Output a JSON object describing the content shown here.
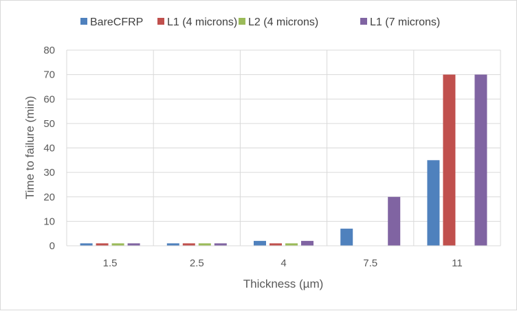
{
  "chart_data": {
    "type": "bar",
    "title": "",
    "xlabel": "Thickness (µm)",
    "ylabel": "Time to failure (min)",
    "categories": [
      "1.5",
      "2.5",
      "4",
      "7.5",
      "11"
    ],
    "ylim": [
      0,
      80
    ],
    "yticks": [
      0,
      10,
      20,
      30,
      40,
      50,
      60,
      70,
      80
    ],
    "grid": true,
    "legend_position": "top",
    "series": [
      {
        "name": "BareCFRP",
        "color": "#4f81bd",
        "values": [
          1,
          1,
          2,
          7,
          35
        ]
      },
      {
        "name": "L1 (4 microns)",
        "color": "#c0504d",
        "values": [
          1,
          1,
          1,
          0,
          70
        ]
      },
      {
        "name": "L2 (4 microns)",
        "color": "#9bbb59",
        "values": [
          1,
          1,
          1,
          0,
          0
        ]
      },
      {
        "name": "L1 (7 microns)",
        "color": "#8064a2",
        "values": [
          1,
          1,
          2,
          20,
          70
        ]
      }
    ]
  }
}
